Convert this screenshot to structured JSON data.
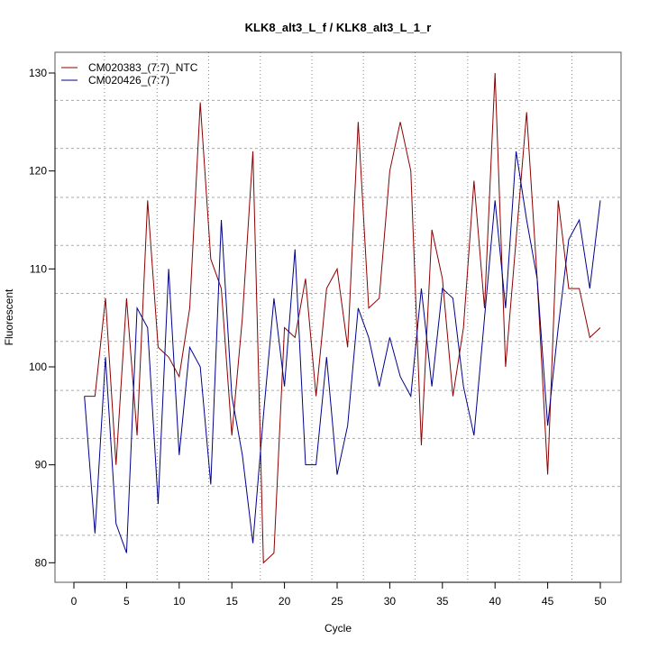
{
  "chart_data": {
    "type": "line",
    "title": "KLK8_alt3_L_f / KLK8_alt3_L_1_r",
    "xlabel": "Cycle",
    "ylabel": "Fluorescent",
    "xlim": [
      -2,
      52
    ],
    "ylim": [
      78,
      131
    ],
    "x_ticks": [
      0,
      5,
      10,
      15,
      20,
      25,
      30,
      35,
      40,
      45,
      50
    ],
    "y_ticks": [
      80,
      90,
      100,
      110,
      120,
      130
    ],
    "grid": true,
    "grid_x": [
      2.9,
      7.9,
      12.8,
      17.7,
      22.6,
      27.5,
      32.4,
      37.4,
      42.3,
      47.3
    ],
    "grid_y": [
      82.8,
      87.8,
      92.7,
      97.6,
      102.6,
      107.5,
      112.4,
      117.3,
      122.3,
      127.2
    ],
    "legend_position": "top-left",
    "x": [
      1,
      2,
      3,
      4,
      5,
      6,
      7,
      8,
      9,
      10,
      11,
      12,
      13,
      14,
      15,
      16,
      17,
      18,
      19,
      20,
      21,
      22,
      23,
      24,
      25,
      26,
      27,
      28,
      29,
      30,
      31,
      32,
      33,
      34,
      35,
      36,
      37,
      38,
      39,
      40,
      41,
      42,
      43,
      44,
      45,
      46,
      47,
      48,
      49,
      50
    ],
    "series": [
      {
        "name": "CM020383_(7:7)_NTC",
        "color": "#8B0000",
        "values": [
          97,
          97,
          107,
          90,
          107,
          93,
          117,
          102,
          101,
          99,
          106,
          127,
          111,
          108,
          93,
          105,
          122,
          80,
          81,
          104,
          103,
          109,
          97,
          108,
          110,
          102,
          125,
          106,
          107,
          120,
          125,
          120,
          92,
          114,
          109,
          97,
          104,
          119,
          106,
          130,
          100,
          113,
          126,
          109,
          89,
          117,
          108,
          108,
          103,
          104
        ]
      },
      {
        "name": "CM020426_(7:7)",
        "color": "#00008B",
        "values": [
          97,
          83,
          101,
          84,
          81,
          106,
          104,
          86,
          110,
          91,
          102,
          100,
          88,
          115,
          97,
          91,
          82,
          95,
          107,
          98,
          112,
          90,
          90,
          101,
          89,
          94,
          106,
          103,
          98,
          103,
          99,
          97,
          108,
          98,
          108,
          107,
          98,
          93,
          105,
          117,
          106,
          122,
          115,
          109,
          94,
          104,
          113,
          115,
          108,
          117
        ]
      }
    ]
  }
}
